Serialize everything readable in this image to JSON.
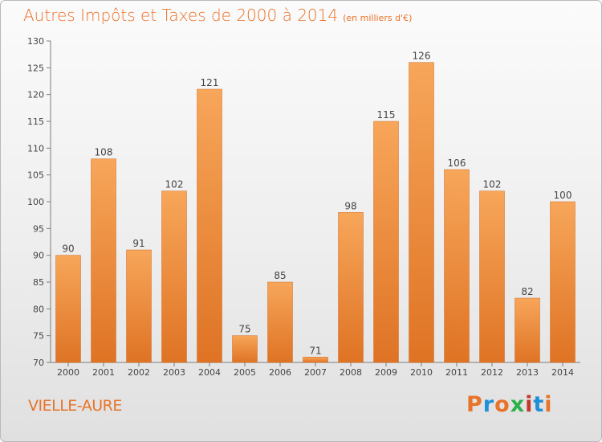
{
  "header": {
    "title": "Autres Impôts et Taxes de 2000 à 2014",
    "subtitle": "(en milliers d'€)"
  },
  "footer": {
    "commune": "VIELLE-AURE",
    "logo": "Proxiti"
  },
  "colors": {
    "accent": "#e8732a",
    "bar_top": "#f7a65a",
    "bar_bottom": "#df7324",
    "logo_letters": [
      "#e8732a",
      "#1f8fd6",
      "#e8732a",
      "#2bb14a",
      "#c0392b",
      "#1f8fd6",
      "#e8732a"
    ]
  },
  "chart_data": {
    "type": "bar",
    "title": "Autres Impôts et Taxes de 2000 à 2014",
    "subtitle": "(en milliers d'€)",
    "xlabel": "",
    "ylabel": "",
    "categories": [
      "2000",
      "2001",
      "2002",
      "2003",
      "2004",
      "2005",
      "2006",
      "2007",
      "2008",
      "2009",
      "2010",
      "2011",
      "2012",
      "2013",
      "2014"
    ],
    "values": [
      90,
      108,
      91,
      102,
      121,
      75,
      85,
      71,
      98,
      115,
      126,
      106,
      102,
      82,
      100
    ],
    "data_labels": [
      "90",
      "108",
      "91",
      "102",
      "121",
      "75",
      "85",
      "71",
      "98",
      "115",
      "126",
      "106",
      "102",
      "82",
      "100"
    ],
    "ylim": [
      70,
      130
    ],
    "yticks": [
      "70",
      "75",
      "80",
      "85",
      "90",
      "95",
      "100",
      "105",
      "110",
      "115",
      "120",
      "125",
      "130"
    ],
    "grid": false,
    "legend": "none"
  }
}
